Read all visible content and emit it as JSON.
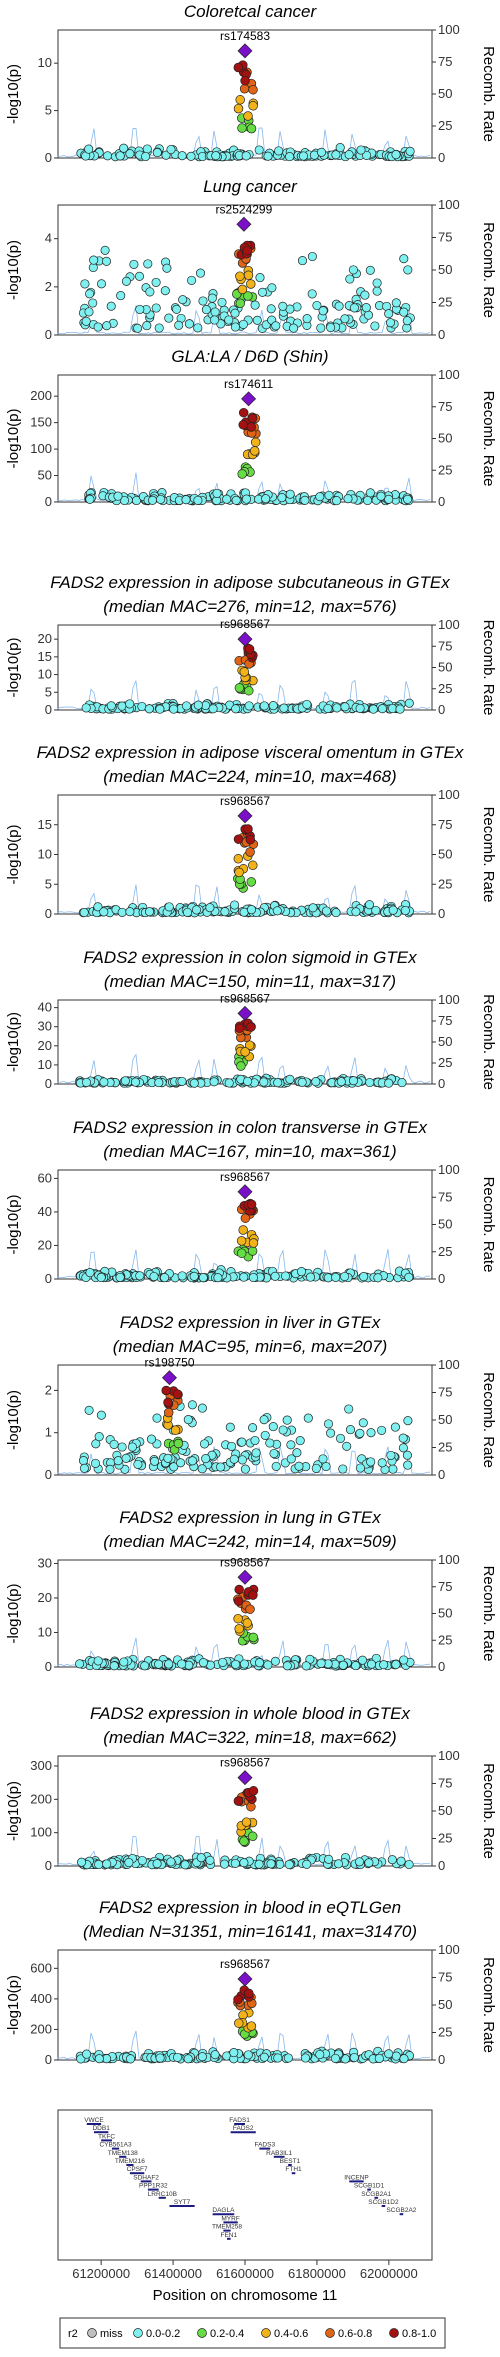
{
  "colors": {
    "miss": "#bfbfbf",
    "r2_0_0.2": "#7ff0f0",
    "r2_0.2_0.4": "#66dd44",
    "r2_0.4_0.6": "#f2b21a",
    "r2_0.6_0.8": "#e06516",
    "r2_0.8_1.0": "#a31111",
    "lead": "#7a10c8",
    "recomb": "#6aa6e8"
  },
  "y_axis_label": "-log10(p)",
  "y2_axis_label": "Recomb. Rate",
  "y2_ticks": [
    "0",
    "25",
    "50",
    "75",
    "100"
  ],
  "x_axis": {
    "label": "Position on chromosome 11",
    "ticks": [
      61200000,
      61400000,
      61600000,
      61800000,
      62000000
    ],
    "tick_labels": [
      "61200000",
      "61400000",
      "61600000",
      "61800000",
      "62000000"
    ],
    "range": [
      61080000,
      62120000
    ]
  },
  "legend": {
    "title": "r2",
    "items": [
      {
        "label": "miss",
        "color_key": "miss"
      },
      {
        "label": "0.0-0.2",
        "color_key": "r2_0_0.2"
      },
      {
        "label": "0.2-0.4",
        "color_key": "r2_0.2_0.4"
      },
      {
        "label": "0.4-0.6",
        "color_key": "r2_0.4_0.6"
      },
      {
        "label": "0.6-0.8",
        "color_key": "r2_0.6_0.8"
      },
      {
        "label": "0.8-1.0",
        "color_key": "r2_0.8_1.0"
      }
    ]
  },
  "chart_data": [
    {
      "type": "scatter",
      "title": [
        "Coloretcal cancer"
      ],
      "lead_snp": "rs174583",
      "lead_pos": 61600000,
      "lead_y": 11.3,
      "ylim": [
        0,
        13.5
      ],
      "yticks": [
        0,
        5,
        10
      ]
    },
    {
      "type": "scatter",
      "title": [
        "Lung cancer"
      ],
      "lead_snp": "rs2524299",
      "lead_pos": 61597000,
      "lead_y": 4.6,
      "ylim": [
        0,
        5.4
      ],
      "yticks": [
        0,
        2,
        4
      ]
    },
    {
      "type": "scatter",
      "title": [
        "GLA:LA / D6D (Shin)"
      ],
      "lead_snp": "rs174611",
      "lead_pos": 61610000,
      "lead_y": 195,
      "ylim": [
        0,
        240
      ],
      "yticks": [
        0,
        50,
        100,
        150,
        200
      ]
    },
    {
      "type": "scatter",
      "title": [
        "FADS2 expression in adipose subcutaneous in GTEx",
        "(median MAC=276, min=12, max=576)"
      ],
      "lead_snp": "rs968567",
      "lead_pos": 61600000,
      "lead_y": 20,
      "ylim": [
        0,
        24
      ],
      "yticks": [
        0,
        5,
        10,
        15,
        20
      ]
    },
    {
      "type": "scatter",
      "title": [
        "FADS2 expression in adipose visceral omentum in GTEx",
        "(median MAC=224, min=10, max=468)"
      ],
      "lead_snp": "rs968567",
      "lead_pos": 61600000,
      "lead_y": 16.5,
      "ylim": [
        0,
        20
      ],
      "yticks": [
        0,
        5,
        10,
        15
      ]
    },
    {
      "type": "scatter",
      "title": [
        "FADS2 expression in colon sigmoid in GTEx",
        "(median MAC=150, min=11, max=317)"
      ],
      "lead_snp": "rs968567",
      "lead_pos": 61600000,
      "lead_y": 37,
      "ylim": [
        0,
        44
      ],
      "yticks": [
        0,
        10,
        20,
        30,
        40
      ]
    },
    {
      "type": "scatter",
      "title": [
        "FADS2 expression in colon transverse in GTEx",
        "(median MAC=167, min=10, max=361)"
      ],
      "lead_snp": "rs968567",
      "lead_pos": 61600000,
      "lead_y": 52,
      "ylim": [
        0,
        65
      ],
      "yticks": [
        0,
        20,
        40,
        60
      ]
    },
    {
      "type": "scatter",
      "title": [
        "FADS2 expression in liver in GTEx",
        "(median MAC=95, min=6, max=207)"
      ],
      "lead_snp": "rs198750",
      "lead_pos": 61390000,
      "lead_y": 2.3,
      "ylim": [
        0,
        2.6
      ],
      "yticks": [
        0,
        1,
        2
      ]
    },
    {
      "type": "scatter",
      "title": [
        "FADS2 expression in lung in GTEx",
        "(median MAC=242, min=14, max=509)"
      ],
      "lead_snp": "rs968567",
      "lead_pos": 61600000,
      "lead_y": 26,
      "ylim": [
        0,
        31
      ],
      "yticks": [
        0,
        10,
        20,
        30
      ]
    },
    {
      "type": "scatter",
      "title": [
        "FADS2 expression in whole blood in GTEx",
        "(median MAC=322, min=18, max=662)"
      ],
      "lead_snp": "rs968567",
      "lead_pos": 61600000,
      "lead_y": 265,
      "ylim": [
        0,
        330
      ],
      "yticks": [
        0,
        100,
        200,
        300
      ]
    },
    {
      "type": "scatter",
      "title": [
        "FADS2 expression in blood in eQTLGen",
        "(Median N=31351, min=16141, max=31470)"
      ],
      "lead_snp": "rs968567",
      "lead_pos": 61600000,
      "lead_y": 530,
      "ylim": [
        0,
        720
      ],
      "yticks": [
        0,
        200,
        400,
        600
      ]
    }
  ],
  "genes": [
    {
      "name": "VWCE",
      "start": 61160000,
      "end": 61200000,
      "row": 0
    },
    {
      "name": "DDB1",
      "start": 61180000,
      "end": 61220000,
      "row": 1
    },
    {
      "name": "TKFC",
      "start": 61200000,
      "end": 61230000,
      "row": 2
    },
    {
      "name": "CYB561A3",
      "start": 61230000,
      "end": 61250000,
      "row": 3
    },
    {
      "name": "TMEM138",
      "start": 61250000,
      "end": 61270000,
      "row": 4
    },
    {
      "name": "TMEM216",
      "start": 61270000,
      "end": 61290000,
      "row": 5
    },
    {
      "name": "CPSF7",
      "start": 61280000,
      "end": 61320000,
      "row": 6
    },
    {
      "name": "SDHAF2",
      "start": 61310000,
      "end": 61340000,
      "row": 7
    },
    {
      "name": "PPP1R32",
      "start": 61330000,
      "end": 61360000,
      "row": 8
    },
    {
      "name": "LRRC10B",
      "start": 61360000,
      "end": 61380000,
      "row": 9
    },
    {
      "name": "SYT7",
      "start": 61390000,
      "end": 61460000,
      "row": 10
    },
    {
      "name": "DAGLA",
      "start": 61510000,
      "end": 61570000,
      "row": 11
    },
    {
      "name": "MYRF",
      "start": 61540000,
      "end": 61580000,
      "row": 12
    },
    {
      "name": "TMEM258",
      "start": 61540000,
      "end": 61560000,
      "row": 13
    },
    {
      "name": "FEN1",
      "start": 61550000,
      "end": 61560000,
      "row": 14
    },
    {
      "name": "FADS2",
      "start": 61560000,
      "end": 61630000,
      "row": 1
    },
    {
      "name": "FADS1",
      "start": 61570000,
      "end": 61600000,
      "row": 0
    },
    {
      "name": "FADS3",
      "start": 61640000,
      "end": 61670000,
      "row": 3
    },
    {
      "name": "RAB3IL1",
      "start": 61680000,
      "end": 61710000,
      "row": 4
    },
    {
      "name": "BEST1",
      "start": 61720000,
      "end": 61730000,
      "row": 5
    },
    {
      "name": "FTH1",
      "start": 61730000,
      "end": 61740000,
      "row": 6
    },
    {
      "name": "INCENP",
      "start": 61890000,
      "end": 61930000,
      "row": 7
    },
    {
      "name": "SCGB1D1",
      "start": 61940000,
      "end": 61950000,
      "row": 8
    },
    {
      "name": "SCGB2A1",
      "start": 61960000,
      "end": 61970000,
      "row": 9
    },
    {
      "name": "SCGB1D2",
      "start": 61980000,
      "end": 61990000,
      "row": 10
    },
    {
      "name": "SCGB2A2",
      "start": 62030000,
      "end": 62040000,
      "row": 11
    }
  ]
}
